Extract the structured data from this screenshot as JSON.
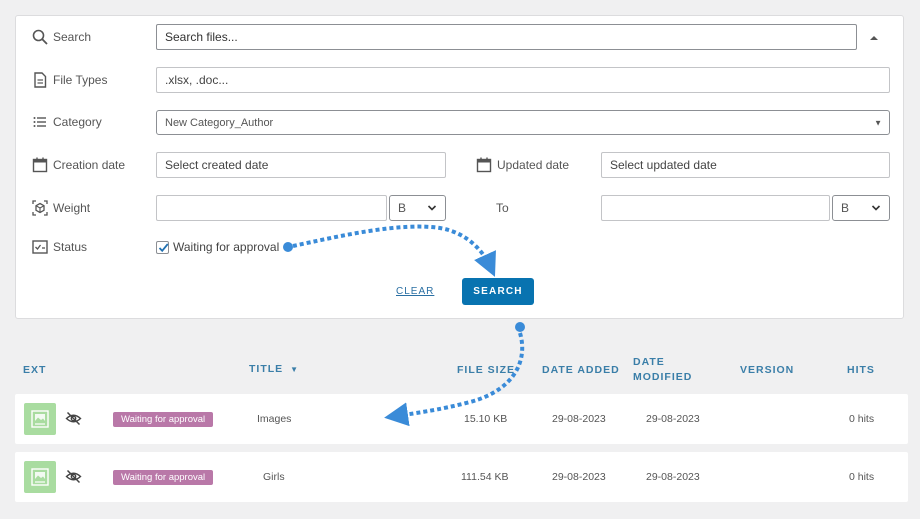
{
  "filters": {
    "search_label": "Search",
    "search_placeholder": "Search files...",
    "file_types_label": "File Types",
    "file_types_value": ".xlsx, .doc...",
    "category_label": "Category",
    "category_value": "New Category_Author",
    "creation_date_label": "Creation date",
    "creation_date_placeholder": "Select created date",
    "updated_date_label": "Updated date",
    "updated_date_placeholder": "Select updated date",
    "weight_label": "Weight",
    "weight_from_value": "",
    "weight_from_unit": "B",
    "weight_to_label": "To",
    "weight_to_value": "",
    "weight_to_unit": "B",
    "status_label": "Status",
    "status_option": "Waiting for approval",
    "status_checked": true,
    "clear_label": "CLEAR",
    "search_button": "SEARCH"
  },
  "table": {
    "headers": {
      "ext": "EXT",
      "title": "TITLE",
      "file_size": "FILE SIZE",
      "date_added": "DATE ADDED",
      "date_modified_1": "DATE",
      "date_modified_2": "MODIFIED",
      "version": "VERSION",
      "hits": "HITS"
    },
    "rows": [
      {
        "status": "Waiting for approval",
        "title": "Images",
        "file_size": "15.10 KB",
        "date_added": "29-08-2023",
        "date_modified": "29-08-2023",
        "version": "",
        "hits": "0 hits"
      },
      {
        "status": "Waiting for approval",
        "title": "Girls",
        "file_size": "111.54 KB",
        "date_added": "29-08-2023",
        "date_modified": "29-08-2023",
        "version": "",
        "hits": "0 hits"
      }
    ]
  },
  "colors": {
    "accent": "#0873b0",
    "badge": "#b978a8",
    "thumb": "#a9dca0",
    "arrow": "#3a8bd8"
  }
}
